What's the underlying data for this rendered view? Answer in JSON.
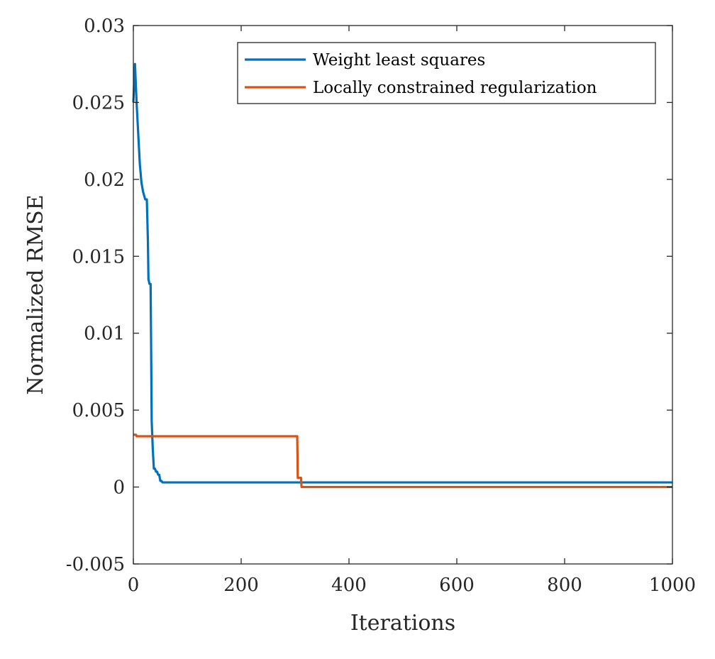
{
  "chart_data": {
    "type": "line",
    "title": "",
    "xlabel": "Iterations",
    "ylabel": "Normalized RMSE",
    "xlim": [
      0,
      1000
    ],
    "ylim": [
      -0.005,
      0.03
    ],
    "xticks": [
      0,
      200,
      400,
      600,
      800,
      1000
    ],
    "xtick_labels": [
      "0",
      "200",
      "400",
      "600",
      "800",
      "1000"
    ],
    "yticks": [
      -0.005,
      0,
      0.005,
      0.01,
      0.015,
      0.02,
      0.025,
      0.03
    ],
    "ytick_labels": [
      "-0.005",
      "0",
      "0.005",
      "0.01",
      "0.015",
      "0.02",
      "0.025",
      "0.03"
    ],
    "grid": false,
    "legend_position": "top-right",
    "series": [
      {
        "name": "Weight least squares",
        "color": "#0072BD",
        "x": [
          0,
          3,
          6,
          9,
          12,
          15,
          18,
          22,
          25,
          27,
          28,
          30,
          32,
          33,
          34,
          36,
          38,
          40,
          42,
          44,
          46,
          48,
          50,
          52,
          54,
          56,
          60,
          100,
          200,
          300,
          400,
          600,
          800,
          1000
        ],
        "y": [
          0.025,
          0.0275,
          0.025,
          0.023,
          0.021,
          0.0198,
          0.0192,
          0.0187,
          0.0187,
          0.016,
          0.0135,
          0.0132,
          0.0132,
          0.009,
          0.0043,
          0.0025,
          0.0012,
          0.0012,
          0.001,
          0.001,
          0.0008,
          0.0008,
          0.0004,
          0.0004,
          0.0003,
          0.0003,
          0.0003,
          0.0003,
          0.0003,
          0.0003,
          0.0003,
          0.0003,
          0.0003,
          0.0003
        ]
      },
      {
        "name": "Locally constrained regularization",
        "color": "#D95319",
        "x": [
          0,
          5,
          6,
          100,
          200,
          304,
          305,
          311,
          312,
          320,
          400,
          600,
          800,
          1000
        ],
        "y": [
          0.0034,
          0.0034,
          0.0033,
          0.0033,
          0.0033,
          0.0033,
          0.0006,
          0.0006,
          0.0,
          0.0,
          0.0,
          0.0,
          0.0,
          0.0
        ]
      }
    ]
  }
}
